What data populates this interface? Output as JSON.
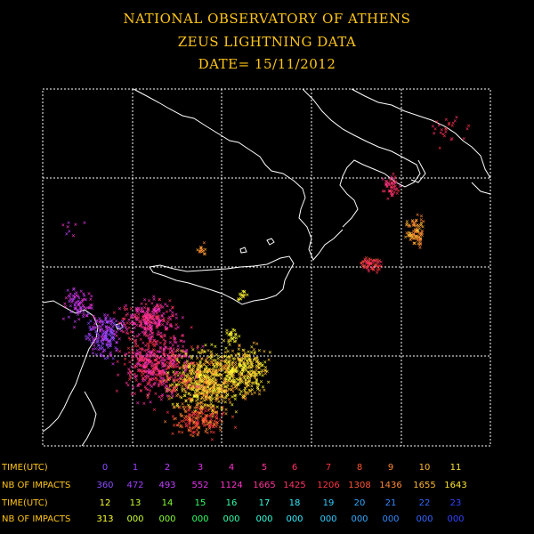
{
  "header": {
    "line1": "NATIONAL OBSERVATORY OF ATHENS",
    "line2": "ZEUS LIGHTNING DATA",
    "line3": "DATE= 15/11/2012"
  },
  "legend": {
    "time_label": "TIME(UTC)",
    "impacts_label": "NB OF IMPACTS",
    "row1": [
      {
        "hour": "0",
        "count": "360",
        "color": "#8a4dff"
      },
      {
        "hour": "1",
        "count": "472",
        "color": "#a040ff"
      },
      {
        "hour": "2",
        "count": "493",
        "color": "#c040ff"
      },
      {
        "hour": "3",
        "count": "552",
        "color": "#e033e8"
      },
      {
        "hour": "4",
        "count": "1124",
        "color": "#ff33cc"
      },
      {
        "hour": "5",
        "count": "1665",
        "color": "#ff3399"
      },
      {
        "hour": "6",
        "count": "1425",
        "color": "#ff3366"
      },
      {
        "hour": "7",
        "count": "1206",
        "color": "#ff3344"
      },
      {
        "hour": "8",
        "count": "1308",
        "color": "#ff5533"
      },
      {
        "hour": "9",
        "count": "1436",
        "color": "#ff8833"
      },
      {
        "hour": "10",
        "count": "1655",
        "color": "#ffb833"
      },
      {
        "hour": "11",
        "count": "1643",
        "color": "#ffe633"
      }
    ],
    "row2": [
      {
        "hour": "12",
        "count": "313",
        "color": "#ffff33"
      },
      {
        "hour": "13",
        "count": "000",
        "color": "#ccff33"
      },
      {
        "hour": "14",
        "count": "000",
        "color": "#88ff33"
      },
      {
        "hour": "15",
        "count": "000",
        "color": "#33ff66"
      },
      {
        "hour": "16",
        "count": "000",
        "color": "#33ffaa"
      },
      {
        "hour": "17",
        "count": "000",
        "color": "#33ffdd"
      },
      {
        "hour": "18",
        "count": "000",
        "color": "#33eeff"
      },
      {
        "hour": "19",
        "count": "000",
        "color": "#33ccff"
      },
      {
        "hour": "20",
        "count": "000",
        "color": "#33aaff"
      },
      {
        "hour": "21",
        "count": "000",
        "color": "#3388ff"
      },
      {
        "hour": "22",
        "count": "000",
        "color": "#3366ff"
      },
      {
        "hour": "23",
        "count": "000",
        "color": "#3344ff"
      }
    ]
  },
  "colors": {
    "title": "#ffc61a",
    "coastline": "#ffffff",
    "grid": "#ffffff"
  }
}
